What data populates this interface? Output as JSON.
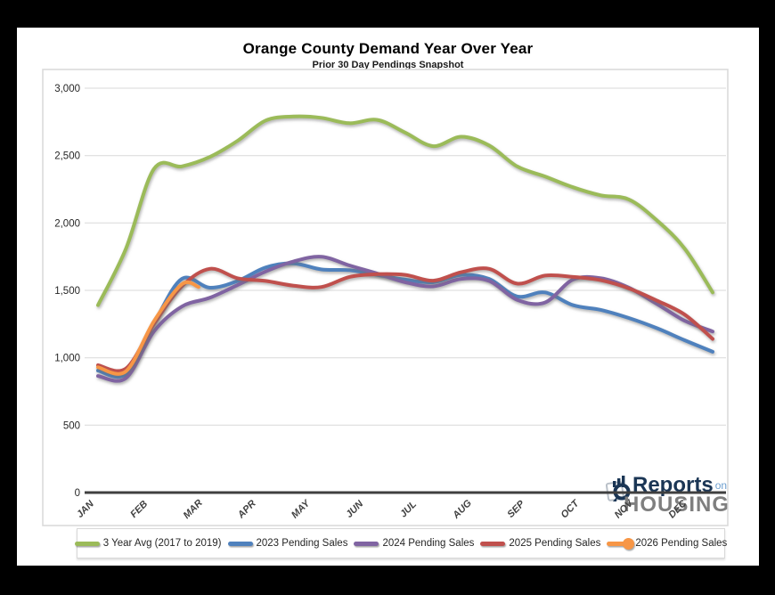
{
  "page": {
    "background": "#000000",
    "surface": "#FFFFFF"
  },
  "header": {
    "title": "Orange County Demand Year Over Year",
    "subtitle": "Prior 30 Day Pendings Snapshot"
  },
  "logo": {
    "word_reports": "Reports",
    "word_on": "on",
    "word_housing": "HOUSING",
    "navy": "#1B3655",
    "light_blue": "#6FA0D0",
    "gray": "#7F7F7F"
  },
  "chart_data": {
    "type": "line",
    "title": "Orange County Demand Year Over Year",
    "subtitle": "Prior 30 Day Pendings Snapshot",
    "categories": [
      "JAN",
      "FEB",
      "MAR",
      "APR",
      "MAY",
      "JUN",
      "JUL",
      "AUG",
      "SEP",
      "OCT",
      "NOV",
      "DEC"
    ],
    "x_note": "x values are months; 1=JAN through 12=DEC; half steps are mid-month readings",
    "y_axis": {
      "tick_values": [
        0,
        500,
        1000,
        1500,
        2000,
        2500,
        3000
      ],
      "tick_labels": [
        "0",
        "500",
        "1,000",
        "1,500",
        "2,000",
        "2,500",
        "3,000"
      ]
    },
    "ylim": [
      0,
      3000
    ],
    "grid": "horizontal",
    "legend_position": "bottom",
    "series": [
      {
        "name": "3 Year Avg (2017 to 2019)",
        "slug": "3-year-avg",
        "color": "#9BBB59",
        "marker_end": false,
        "x": [
          1,
          1.5,
          2,
          2.5,
          3,
          3.5,
          4,
          4.5,
          5,
          5.5,
          6,
          6.5,
          7,
          7.5,
          8,
          8.5,
          9,
          9.5,
          10,
          10.5,
          11,
          11.5,
          12
        ],
        "values": [
          1390,
          1810,
          2400,
          2420,
          2490,
          2610,
          2760,
          2790,
          2780,
          2740,
          2765,
          2670,
          2570,
          2640,
          2575,
          2420,
          2345,
          2265,
          2205,
          2175,
          2020,
          1810,
          1485
        ]
      },
      {
        "name": "2023 Pending Sales",
        "slug": "2023-pending-sales",
        "color": "#4F81BD",
        "marker_end": false,
        "x": [
          1,
          1.5,
          2,
          2.5,
          3,
          3.5,
          4,
          4.5,
          5,
          5.5,
          6,
          6.5,
          7,
          7.5,
          8,
          8.5,
          9,
          9.5,
          10,
          10.5,
          11,
          11.5,
          12
        ],
        "values": [
          905,
          880,
          1255,
          1585,
          1520,
          1570,
          1670,
          1700,
          1655,
          1650,
          1615,
          1580,
          1560,
          1615,
          1585,
          1455,
          1485,
          1390,
          1355,
          1295,
          1220,
          1130,
          1045
        ]
      },
      {
        "name": "2024 Pending Sales",
        "slug": "2024-pending-sales",
        "color": "#8064A2",
        "marker_end": false,
        "x": [
          1,
          1.5,
          2,
          2.5,
          3,
          3.5,
          4,
          4.5,
          5,
          5.5,
          6,
          6.5,
          7,
          7.5,
          8,
          8.5,
          9,
          9.5,
          10,
          10.5,
          11,
          11.5,
          12
        ],
        "values": [
          865,
          850,
          1195,
          1380,
          1445,
          1540,
          1640,
          1715,
          1750,
          1685,
          1625,
          1560,
          1530,
          1585,
          1570,
          1430,
          1410,
          1580,
          1590,
          1520,
          1400,
          1275,
          1195
        ]
      },
      {
        "name": "2025 Pending Sales",
        "slug": "2025-pending-sales",
        "color": "#C0504D",
        "marker_end": false,
        "x": [
          1,
          1.5,
          2,
          2.5,
          3,
          3.5,
          4,
          4.5,
          5,
          5.5,
          6,
          6.5,
          7,
          7.5,
          8,
          8.5,
          9,
          9.5,
          10,
          10.5,
          11,
          11.5,
          12
        ],
        "values": [
          945,
          920,
          1250,
          1530,
          1660,
          1590,
          1570,
          1535,
          1525,
          1600,
          1620,
          1615,
          1572,
          1635,
          1660,
          1550,
          1610,
          1600,
          1575,
          1515,
          1425,
          1320,
          1140
        ]
      },
      {
        "name": "2026 Pending Sales",
        "slug": "2026-pending-sales",
        "color": "#F79646",
        "marker_end": true,
        "x": [
          1,
          1.5,
          2,
          2.5,
          2.8
        ],
        "values": [
          930,
          900,
          1270,
          1545,
          1525
        ]
      }
    ]
  }
}
